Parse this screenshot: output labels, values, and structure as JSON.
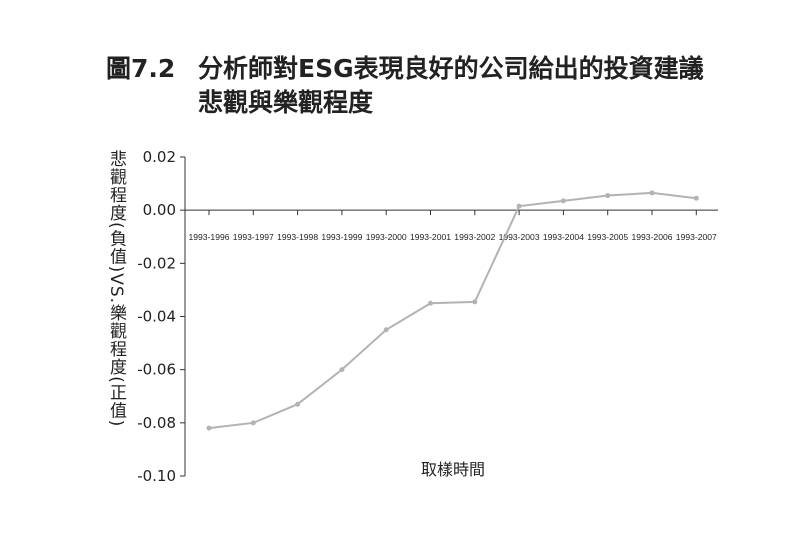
{
  "figure": {
    "number": "圖7.2",
    "title_line1": "分析師對ESG表現良好的公司給出的投資建議",
    "title_line2": "悲觀與樂觀程度"
  },
  "chart_data": {
    "type": "line",
    "title": "分析師對ESG表現良好的公司給出的投資建議悲觀與樂觀程度",
    "xlabel": "取樣時間",
    "ylabel": "悲觀程度(負值)VS.樂觀程度(正值)",
    "categories": [
      "1993-1996",
      "1993-1997",
      "1993-1998",
      "1993-1999",
      "1993-2000",
      "1993-2001",
      "1993-2002",
      "1993-2003",
      "1993-2004",
      "1993-2005",
      "1993-2006",
      "1993-2007"
    ],
    "values": [
      -0.082,
      -0.08,
      -0.073,
      -0.06,
      -0.045,
      -0.035,
      -0.0345,
      0.0015,
      0.0035,
      0.0055,
      0.0065,
      0.0045
    ],
    "yticks": [
      "0.02",
      "0.00",
      "-0.02",
      "-0.04",
      "-0.06",
      "-0.08",
      "-0.10"
    ],
    "ylim": [
      -0.1,
      0.02
    ],
    "grid": false,
    "line_color": "#b3b3b3",
    "axis_color": "#333333"
  }
}
